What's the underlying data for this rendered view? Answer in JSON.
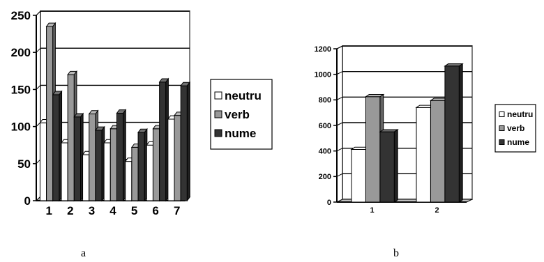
{
  "colors": {
    "neutru": "#ffffff",
    "verb": "#999999",
    "nume": "#333333",
    "gridline": "#000000",
    "wall_edge": "#808080"
  },
  "chart_data": [
    {
      "type": "bar",
      "panel_label": "a",
      "categories": [
        "1",
        "2",
        "3",
        "4",
        "5",
        "6",
        "7"
      ],
      "series": [
        {
          "name": "neutru",
          "values": [
            105,
            78,
            62,
            78,
            53,
            75,
            110
          ]
        },
        {
          "name": "verb",
          "values": [
            235,
            170,
            117,
            97,
            72,
            97,
            115
          ]
        },
        {
          "name": "nume",
          "values": [
            143,
            113,
            95,
            118,
            92,
            160,
            155
          ]
        }
      ],
      "ylim": [
        0,
        250
      ],
      "y_ticks": [
        "0",
        "50",
        "100",
        "150",
        "200",
        "250"
      ],
      "legend": "right",
      "grid": true
    },
    {
      "type": "bar",
      "panel_label": "b",
      "categories": [
        "1",
        "2"
      ],
      "series": [
        {
          "name": "neutru",
          "values": [
            412,
            740
          ]
        },
        {
          "name": "verb",
          "values": [
            825,
            795
          ]
        },
        {
          "name": "nume",
          "values": [
            550,
            1065
          ]
        }
      ],
      "ylim": [
        0,
        1200
      ],
      "y_ticks": [
        "0",
        "200",
        "400",
        "600",
        "800",
        "1000",
        "1200"
      ],
      "legend": "right",
      "grid": true
    }
  ]
}
